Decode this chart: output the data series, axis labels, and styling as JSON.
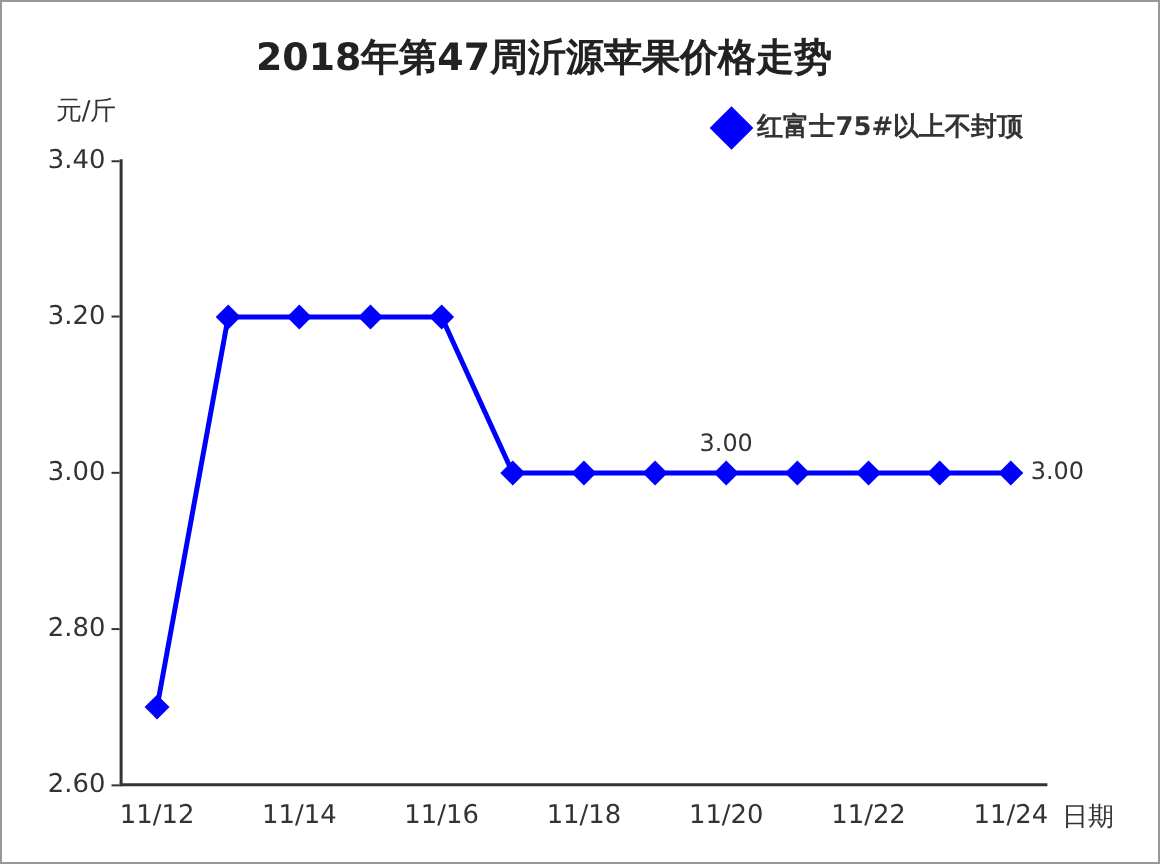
{
  "chart_data": {
    "type": "line",
    "title": "2018年第47周沂源苹果价格走势",
    "xlabel": "日期",
    "ylabel": "元/斤",
    "categories": [
      "11/12",
      null,
      "11/14",
      null,
      "11/16",
      null,
      "11/18",
      null,
      "11/20",
      null,
      "11/22",
      null,
      "11/24"
    ],
    "series": [
      {
        "name": "红富士75#以上不封顶",
        "color": "#0000ff",
        "values": [
          2.7,
          3.2,
          3.2,
          3.2,
          3.2,
          3.0,
          3.0,
          3.0,
          3.0,
          3.0,
          3.0,
          3.0,
          3.0
        ],
        "value_labels": [
          null,
          null,
          null,
          null,
          null,
          null,
          null,
          null,
          "3.00",
          null,
          null,
          null,
          "3.00"
        ]
      }
    ],
    "ylim": [
      2.6,
      3.4
    ],
    "yticks": [
      {
        "value": 2.6,
        "label": "2.60"
      },
      {
        "value": 2.8,
        "label": "2.80"
      },
      {
        "value": 3.0,
        "label": "3.00"
      },
      {
        "value": 3.2,
        "label": "3.20"
      },
      {
        "value": 3.4,
        "label": "3.40"
      }
    ],
    "grid": false,
    "legend": "top right",
    "marker": "diamond",
    "line_style": "solid"
  }
}
